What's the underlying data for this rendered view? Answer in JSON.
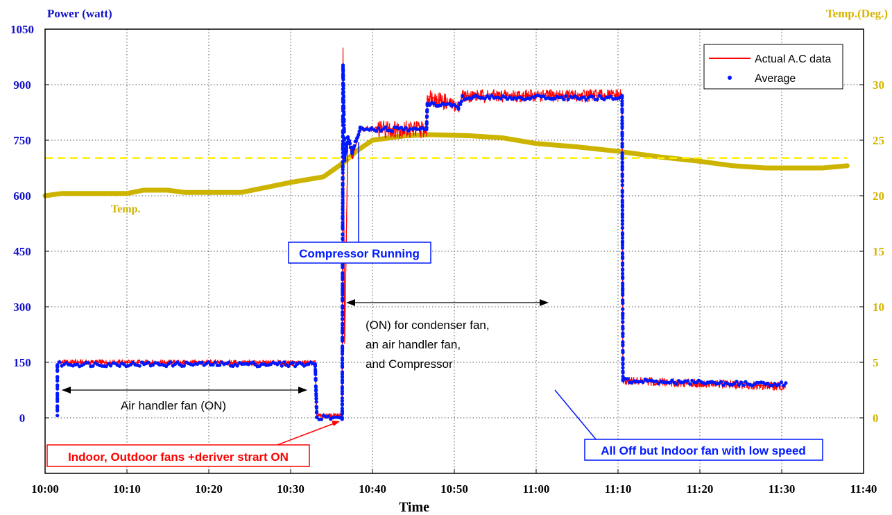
{
  "chart_data": {
    "type": "line",
    "xlabel": "Time",
    "ylabel": "Power (watt)",
    "y2label": "Temp.(Deg.)",
    "x_ticks": [
      "10:00",
      "10:10",
      "10:20",
      "10:30",
      "10:40",
      "10:50",
      "11:00",
      "11:10",
      "11:20",
      "11:30",
      "11:40"
    ],
    "xlim_minutes": [
      0,
      100
    ],
    "ylim": [
      -150,
      1050
    ],
    "y_ticks": [
      0,
      150,
      300,
      450,
      600,
      750,
      900,
      1050
    ],
    "y2lim": [
      -5,
      35
    ],
    "y2_ticks": [
      0,
      5,
      10,
      15,
      20,
      25,
      30
    ],
    "grid": true,
    "legend_position": "top-right",
    "colors": {
      "power_left_axis": "#1010c8",
      "temp_right_axis": "#d4b400",
      "actual": "#ff0000",
      "average": "#0018ff",
      "temp_line": "#ccb400",
      "setpoint": "#ffee00"
    },
    "series": [
      {
        "name": "Actual A.C data",
        "style": "red-line",
        "noise_amplitude": [
          [
            1.5,
            40.5,
            8
          ],
          [
            40.5,
            49,
            25
          ],
          [
            49,
            70.5,
            18
          ],
          [
            70.5,
            90.5,
            12
          ]
        ],
        "points": [
          [
            1.5,
            150
          ],
          [
            33,
            148
          ],
          [
            33.2,
            5
          ],
          [
            36.3,
            5
          ],
          [
            36.4,
            1000
          ],
          [
            36.6,
            200
          ],
          [
            37,
            760
          ],
          [
            37.5,
            700
          ],
          [
            38.5,
            780
          ],
          [
            40,
            780
          ],
          [
            46.6,
            780
          ],
          [
            46.7,
            870
          ],
          [
            50.5,
            840
          ],
          [
            51,
            870
          ],
          [
            70.5,
            870
          ],
          [
            70.6,
            100
          ],
          [
            90.5,
            85
          ]
        ]
      },
      {
        "name": "Average",
        "style": "blue-dots",
        "points": [
          [
            1.5,
            10
          ],
          [
            1.5,
            145
          ],
          [
            33,
            145
          ],
          [
            33.2,
            0
          ],
          [
            36.3,
            0
          ],
          [
            36.4,
            950
          ],
          [
            36.6,
            700
          ],
          [
            37,
            760
          ],
          [
            37.5,
            720
          ],
          [
            38.5,
            780
          ],
          [
            46.6,
            780
          ],
          [
            46.7,
            850
          ],
          [
            50.5,
            840
          ],
          [
            51,
            865
          ],
          [
            70.5,
            865
          ],
          [
            70.6,
            100
          ],
          [
            90.5,
            90
          ]
        ]
      },
      {
        "name": "",
        "style": "temp-line",
        "axis": "right",
        "points": [
          [
            0,
            20
          ],
          [
            2,
            20.2
          ],
          [
            10,
            20.2
          ],
          [
            12,
            20.5
          ],
          [
            15,
            20.5
          ],
          [
            17,
            20.3
          ],
          [
            20,
            20.3
          ],
          [
            24,
            20.3
          ],
          [
            30,
            21.2
          ],
          [
            34,
            21.7
          ],
          [
            36.5,
            23
          ],
          [
            38,
            24
          ],
          [
            40,
            25
          ],
          [
            44,
            25.4
          ],
          [
            47,
            25.5
          ],
          [
            52,
            25.4
          ],
          [
            56,
            25.2
          ],
          [
            60,
            24.7
          ],
          [
            65,
            24.4
          ],
          [
            70,
            24.0
          ],
          [
            75,
            23.5
          ],
          [
            80,
            23.1
          ],
          [
            84,
            22.7
          ],
          [
            88,
            22.5
          ],
          [
            92,
            22.5
          ],
          [
            95,
            22.5
          ],
          [
            98,
            22.7
          ]
        ]
      },
      {
        "name": "",
        "style": "setpoint-dashed",
        "axis": "right",
        "points": [
          [
            0,
            23.4
          ],
          [
            98,
            23.4
          ]
        ]
      }
    ],
    "annotations": [
      {
        "text": "Temp.",
        "style": "temp-label"
      },
      {
        "text": "Compressor Running",
        "style": "blue-box"
      },
      {
        "text": "(ON) for condenser fan,",
        "style": "plain"
      },
      {
        "text": "an air handler fan,",
        "style": "plain"
      },
      {
        "text": "and Compressor",
        "style": "plain"
      },
      {
        "text": "Air handler fan (ON)",
        "style": "plain"
      },
      {
        "text": "Indoor, Outdoor fans +deriver strart ON",
        "style": "red-box"
      },
      {
        "text": "All Off but Indoor fan with low speed",
        "style": "blue-box"
      }
    ]
  }
}
